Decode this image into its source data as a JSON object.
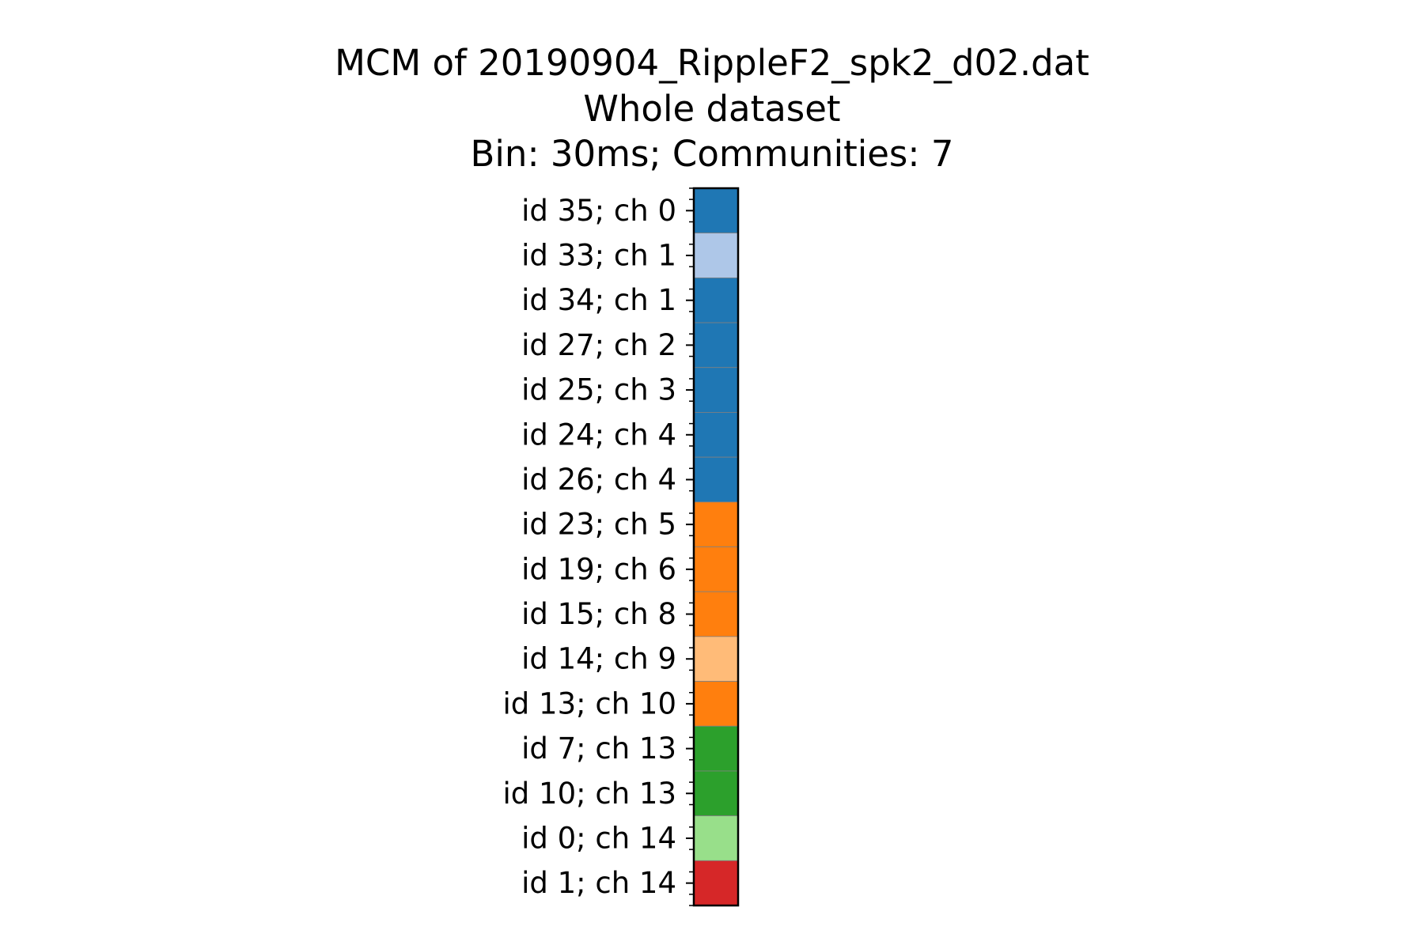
{
  "chart_data": {
    "type": "heatmap",
    "title": "MCM of 20190904_RippleF2_spk2_d02.dat",
    "subtitle": "Whole dataset",
    "subtitle2": "Bin: 30ms; Communities: 7",
    "xlabel": "",
    "ylabel": "",
    "grid": false,
    "legend": "none",
    "rows": [
      {
        "label": "id 35; ch 0",
        "community": 0,
        "color": "#1f77b4"
      },
      {
        "label": "id 33; ch 1",
        "community": 1,
        "color": "#aec7e8"
      },
      {
        "label": "id 34; ch 1",
        "community": 0,
        "color": "#1f77b4"
      },
      {
        "label": "id 27; ch 2",
        "community": 0,
        "color": "#1f77b4"
      },
      {
        "label": "id 25; ch 3",
        "community": 0,
        "color": "#1f77b4"
      },
      {
        "label": "id 24; ch 4",
        "community": 0,
        "color": "#1f77b4"
      },
      {
        "label": "id 26; ch 4",
        "community": 0,
        "color": "#1f77b4"
      },
      {
        "label": "id 23; ch 5",
        "community": 2,
        "color": "#ff7f0e"
      },
      {
        "label": "id 19; ch 6",
        "community": 2,
        "color": "#ff7f0e"
      },
      {
        "label": "id 15; ch 8",
        "community": 2,
        "color": "#ff7f0e"
      },
      {
        "label": "id 14; ch 9",
        "community": 3,
        "color": "#ffbb78"
      },
      {
        "label": "id 13; ch 10",
        "community": 2,
        "color": "#ff7f0e"
      },
      {
        "label": "id 7; ch 13",
        "community": 4,
        "color": "#2ca02c"
      },
      {
        "label": "id 10; ch 13",
        "community": 4,
        "color": "#2ca02c"
      },
      {
        "label": "id 0; ch 14",
        "community": 5,
        "color": "#98df8a"
      },
      {
        "label": "id 1; ch 14",
        "community": 6,
        "color": "#d62728"
      }
    ]
  }
}
